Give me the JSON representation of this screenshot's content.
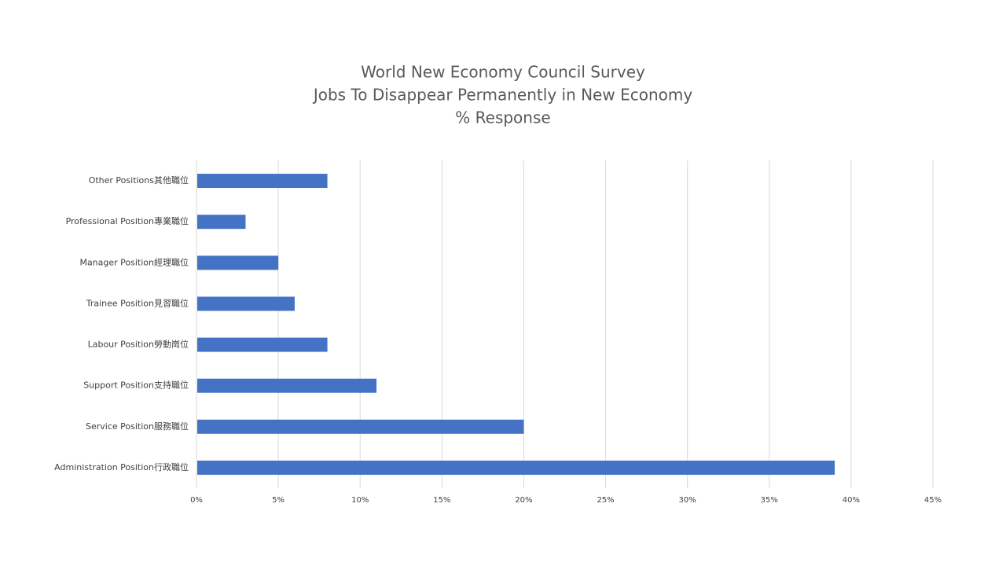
{
  "chart_data": {
    "type": "bar",
    "orientation": "horizontal",
    "title": [
      "World New Economy Council Survey",
      "Jobs To Disappear Permanently in New Economy",
      "% Response"
    ],
    "categories": [
      "Other Positions其他職位",
      "Professional Position專業職位",
      "Manager Position經理職位",
      "Trainee Position見習職位",
      "Labour Position勞動崗位",
      "Support Position支持職位",
      "Service Position服務職位",
      "Administration Position行政職位"
    ],
    "values": [
      8,
      3,
      5,
      6,
      8,
      11,
      20,
      39
    ],
    "xlim": [
      0,
      45
    ],
    "xticks": [
      0,
      5,
      10,
      15,
      20,
      25,
      30,
      35,
      40,
      45
    ],
    "xtick_labels": [
      "0%",
      "5%",
      "10%",
      "15%",
      "20%",
      "25%",
      "30%",
      "35%",
      "40%",
      "45%"
    ],
    "xlabel": "",
    "ylabel": "",
    "grid": "vertical",
    "legend": "none",
    "bar_color": "#4472C4",
    "gridline_color": "#D9D9D9"
  }
}
